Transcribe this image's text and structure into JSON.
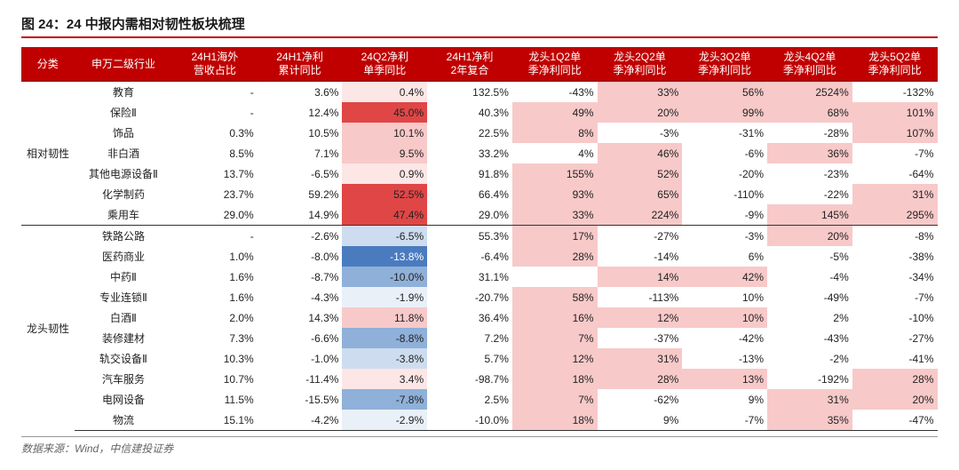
{
  "title": "图 24：24 中报内需相对韧性板块梳理",
  "source": "数据来源：Wind，中信建投证券",
  "colors": {
    "header_bg": "#c00000",
    "header_fg": "#ffffff",
    "rule": "#c00000",
    "text": "#222222",
    "hl_red_strong": "#e04646",
    "hl_red_mid": "#ef8f8f",
    "hl_red_light": "#f8c9c9",
    "hl_red_faint": "#fde6e6",
    "hl_blue_strong": "#4a7bbf",
    "hl_blue_mid": "#8fb0d9",
    "hl_blue_light": "#cdddef",
    "hl_blue_faint": "#e9f0f8",
    "white": "#ffffff"
  },
  "columns": [
    {
      "key": "cat",
      "label": "分类"
    },
    {
      "key": "industry",
      "label": "申万二级行业"
    },
    {
      "key": "c1",
      "label": "24H1海外\n营收占比"
    },
    {
      "key": "c2",
      "label": "24H1净利\n累计同比"
    },
    {
      "key": "c3",
      "label": "24Q2净利\n单季同比"
    },
    {
      "key": "c4",
      "label": "24H1净利\n2年复合"
    },
    {
      "key": "c5",
      "label": "龙头1Q2单\n季净利同比"
    },
    {
      "key": "c6",
      "label": "龙头2Q2单\n季净利同比"
    },
    {
      "key": "c7",
      "label": "龙头3Q2单\n季净利同比"
    },
    {
      "key": "c8",
      "label": "龙头4Q2单\n季净利同比"
    },
    {
      "key": "c9",
      "label": "龙头5Q2单\n季净利同比"
    }
  ],
  "groups": [
    {
      "cat": "相对韧性",
      "rows": [
        {
          "industry": "教育",
          "c1": "-",
          "c2": "3.6%",
          "c3": {
            "v": "0.4%",
            "bg": "hl_red_faint"
          },
          "c4": "132.5%",
          "c5": "-43%",
          "c6": {
            "v": "33%",
            "bg": "hl_red_light"
          },
          "c7": {
            "v": "56%",
            "bg": "hl_red_light"
          },
          "c8": {
            "v": "2524%",
            "bg": "hl_red_light"
          },
          "c9": "-132%"
        },
        {
          "industry": "保险Ⅱ",
          "c1": "-",
          "c2": "12.4%",
          "c3": {
            "v": "45.0%",
            "bg": "hl_red_strong"
          },
          "c4": "40.3%",
          "c5": {
            "v": "49%",
            "bg": "hl_red_light"
          },
          "c6": {
            "v": "20%",
            "bg": "hl_red_light"
          },
          "c7": {
            "v": "99%",
            "bg": "hl_red_light"
          },
          "c8": {
            "v": "68%",
            "bg": "hl_red_light"
          },
          "c9": {
            "v": "101%",
            "bg": "hl_red_light"
          }
        },
        {
          "industry": "饰品",
          "c1": "0.3%",
          "c2": "10.5%",
          "c3": {
            "v": "10.1%",
            "bg": "hl_red_light"
          },
          "c4": "22.5%",
          "c5": {
            "v": "8%",
            "bg": "hl_red_light"
          },
          "c6": "-3%",
          "c7": "-31%",
          "c8": "-28%",
          "c9": {
            "v": "107%",
            "bg": "hl_red_light"
          }
        },
        {
          "industry": "非白酒",
          "c1": "8.5%",
          "c2": "7.1%",
          "c3": {
            "v": "9.5%",
            "bg": "hl_red_light"
          },
          "c4": "33.2%",
          "c5": "4%",
          "c6": {
            "v": "46%",
            "bg": "hl_red_light"
          },
          "c7": "-6%",
          "c8": {
            "v": "36%",
            "bg": "hl_red_light"
          },
          "c9": "-7%"
        },
        {
          "industry": "其他电源设备Ⅱ",
          "c1": "13.7%",
          "c2": "-6.5%",
          "c3": {
            "v": "0.9%",
            "bg": "hl_red_faint"
          },
          "c4": "91.8%",
          "c5": {
            "v": "155%",
            "bg": "hl_red_light"
          },
          "c6": {
            "v": "52%",
            "bg": "hl_red_light"
          },
          "c7": "-20%",
          "c8": "-23%",
          "c9": "-64%"
        },
        {
          "industry": "化学制药",
          "c1": "23.7%",
          "c2": "59.2%",
          "c3": {
            "v": "52.5%",
            "bg": "hl_red_strong"
          },
          "c4": "66.4%",
          "c5": {
            "v": "93%",
            "bg": "hl_red_light"
          },
          "c6": {
            "v": "65%",
            "bg": "hl_red_light"
          },
          "c7": "-110%",
          "c8": "-22%",
          "c9": {
            "v": "31%",
            "bg": "hl_red_light"
          }
        },
        {
          "industry": "乘用车",
          "c1": "29.0%",
          "c2": "14.9%",
          "c3": {
            "v": "47.4%",
            "bg": "hl_red_strong"
          },
          "c4": "29.0%",
          "c5": {
            "v": "33%",
            "bg": "hl_red_light"
          },
          "c6": {
            "v": "224%",
            "bg": "hl_red_light"
          },
          "c7": "-9%",
          "c8": {
            "v": "145%",
            "bg": "hl_red_light"
          },
          "c9": {
            "v": "295%",
            "bg": "hl_red_light"
          }
        }
      ]
    },
    {
      "cat": "龙头韧性",
      "rows": [
        {
          "industry": "铁路公路",
          "c1": "-",
          "c2": "-2.6%",
          "c3": {
            "v": "-6.5%",
            "bg": "hl_blue_light"
          },
          "c4": "55.3%",
          "c5": {
            "v": "17%",
            "bg": "hl_red_light"
          },
          "c6": "-27%",
          "c7": "-3%",
          "c8": {
            "v": "20%",
            "bg": "hl_red_light"
          },
          "c9": "-8%"
        },
        {
          "industry": "医药商业",
          "c1": "1.0%",
          "c2": "-8.0%",
          "c3": {
            "v": "-13.8%",
            "bg": "hl_blue_strong",
            "fg": "white"
          },
          "c4": "-6.4%",
          "c5": {
            "v": "28%",
            "bg": "hl_red_light"
          },
          "c6": "-14%",
          "c7": "6%",
          "c8": "-5%",
          "c9": "-38%"
        },
        {
          "industry": "中药Ⅱ",
          "c1": "1.6%",
          "c2": "-8.7%",
          "c3": {
            "v": "-10.0%",
            "bg": "hl_blue_mid"
          },
          "c4": "31.1%",
          "c5": "",
          "c6": {
            "v": "14%",
            "bg": "hl_red_light"
          },
          "c7": {
            "v": "42%",
            "bg": "hl_red_light"
          },
          "c8": "-4%",
          "c9": "-34%"
        },
        {
          "industry": "专业连锁Ⅱ",
          "c1": "1.6%",
          "c2": "-4.3%",
          "c3": {
            "v": "-1.9%",
            "bg": "hl_blue_faint"
          },
          "c4": "-20.7%",
          "c5": {
            "v": "58%",
            "bg": "hl_red_light"
          },
          "c6": "-113%",
          "c7": "10%",
          "c8": "-49%",
          "c9": "-7%"
        },
        {
          "industry": "白酒Ⅱ",
          "c1": "2.0%",
          "c2": "14.3%",
          "c3": {
            "v": "11.8%",
            "bg": "hl_red_light"
          },
          "c4": "36.4%",
          "c5": {
            "v": "16%",
            "bg": "hl_red_light"
          },
          "c6": {
            "v": "12%",
            "bg": "hl_red_light"
          },
          "c7": {
            "v": "10%",
            "bg": "hl_red_light"
          },
          "c8": "2%",
          "c9": "-10%"
        },
        {
          "industry": "装修建材",
          "c1": "7.3%",
          "c2": "-6.6%",
          "c3": {
            "v": "-8.8%",
            "bg": "hl_blue_mid"
          },
          "c4": "7.2%",
          "c5": {
            "v": "7%",
            "bg": "hl_red_light"
          },
          "c6": "-37%",
          "c7": "-42%",
          "c8": "-43%",
          "c9": "-27%"
        },
        {
          "industry": "轨交设备Ⅱ",
          "c1": "10.3%",
          "c2": "-1.0%",
          "c3": {
            "v": "-3.8%",
            "bg": "hl_blue_light"
          },
          "c4": "5.7%",
          "c5": {
            "v": "12%",
            "bg": "hl_red_light"
          },
          "c6": {
            "v": "31%",
            "bg": "hl_red_light"
          },
          "c7": "-13%",
          "c8": "-2%",
          "c9": "-41%"
        },
        {
          "industry": "汽车服务",
          "c1": "10.7%",
          "c2": "-11.4%",
          "c3": {
            "v": "3.4%",
            "bg": "hl_red_faint"
          },
          "c4": "-98.7%",
          "c5": {
            "v": "18%",
            "bg": "hl_red_light"
          },
          "c6": {
            "v": "28%",
            "bg": "hl_red_light"
          },
          "c7": {
            "v": "13%",
            "bg": "hl_red_light"
          },
          "c8": "-192%",
          "c9": {
            "v": "28%",
            "bg": "hl_red_light"
          }
        },
        {
          "industry": "电网设备",
          "c1": "11.5%",
          "c2": "-15.5%",
          "c3": {
            "v": "-7.8%",
            "bg": "hl_blue_mid"
          },
          "c4": "2.5%",
          "c5": {
            "v": "7%",
            "bg": "hl_red_light"
          },
          "c6": "-62%",
          "c7": "9%",
          "c8": {
            "v": "31%",
            "bg": "hl_red_light"
          },
          "c9": {
            "v": "20%",
            "bg": "hl_red_light"
          }
        },
        {
          "industry": "物流",
          "c1": "15.1%",
          "c2": "-4.2%",
          "c3": {
            "v": "-2.9%",
            "bg": "hl_blue_faint"
          },
          "c4": "-10.0%",
          "c5": {
            "v": "18%",
            "bg": "hl_red_light"
          },
          "c6": "9%",
          "c7": "-7%",
          "c8": {
            "v": "35%",
            "bg": "hl_red_light"
          },
          "c9": "-47%"
        }
      ]
    }
  ]
}
